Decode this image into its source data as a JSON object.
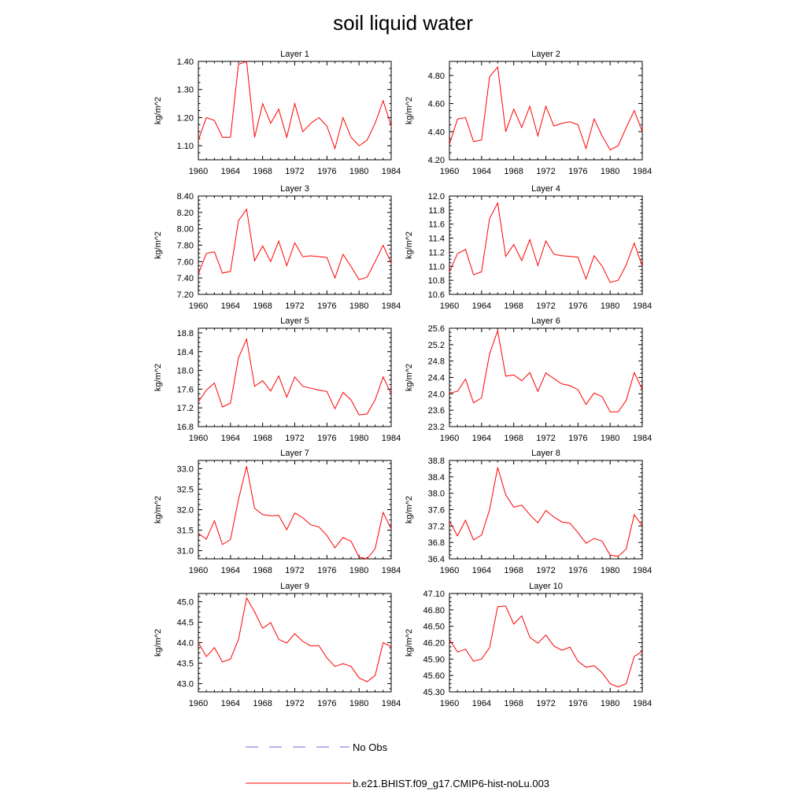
{
  "title": "soil liquid water",
  "ylabel": "kg/m^2",
  "x_tick_labels": [
    "1960",
    "1964",
    "1968",
    "1972",
    "1976",
    "1980",
    "1984"
  ],
  "legend": {
    "items": [
      {
        "label": "No Obs",
        "color": "#6b6bd6",
        "style": "dashed"
      },
      {
        "label": "b.e21.BHIST.f09_g17.CMIP6-hist-noLu.003",
        "color": "#ff0000",
        "style": "solid"
      }
    ]
  },
  "chart_data": [
    {
      "type": "line",
      "title": "Layer 1",
      "ylabel": "kg/m^2",
      "xlim": [
        1960,
        1984
      ],
      "ylim": [
        1.05,
        1.4
      ],
      "yticks": [
        1.1,
        1.2,
        1.3,
        1.4
      ],
      "ytick_labels": [
        "1.10",
        "1.20",
        "1.30",
        "1.40"
      ],
      "x": [
        1960,
        1961,
        1962,
        1963,
        1964,
        1965,
        1966,
        1967,
        1968,
        1969,
        1970,
        1971,
        1972,
        1973,
        1974,
        1975,
        1976,
        1977,
        1978,
        1979,
        1980,
        1981,
        1982,
        1983,
        1984
      ],
      "series": [
        {
          "name": "b.e21.BHIST.f09_g17.CMIP6-hist-noLu.003",
          "color": "#ff0000",
          "values": [
            1.12,
            1.2,
            1.19,
            1.13,
            1.13,
            1.39,
            1.4,
            1.13,
            1.25,
            1.18,
            1.23,
            1.13,
            1.25,
            1.15,
            1.18,
            1.2,
            1.17,
            1.09,
            1.2,
            1.13,
            1.1,
            1.12,
            1.18,
            1.26,
            1.17
          ]
        }
      ]
    },
    {
      "type": "line",
      "title": "Layer 2",
      "ylabel": "kg/m^2",
      "xlim": [
        1960,
        1984
      ],
      "ylim": [
        4.2,
        4.9
      ],
      "yticks": [
        4.2,
        4.4,
        4.6,
        4.8
      ],
      "ytick_labels": [
        "4.20",
        "4.40",
        "4.60",
        "4.80"
      ],
      "x": [
        1960,
        1961,
        1962,
        1963,
        1964,
        1965,
        1966,
        1967,
        1968,
        1969,
        1970,
        1971,
        1972,
        1973,
        1974,
        1975,
        1976,
        1977,
        1978,
        1979,
        1980,
        1981,
        1982,
        1983,
        1984
      ],
      "series": [
        {
          "name": "b.e21.BHIST.f09_g17.CMIP6-hist-noLu.003",
          "color": "#ff0000",
          "values": [
            4.31,
            4.49,
            4.5,
            4.33,
            4.34,
            4.79,
            4.86,
            4.4,
            4.56,
            4.43,
            4.58,
            4.37,
            4.58,
            4.44,
            4.46,
            4.47,
            4.45,
            4.28,
            4.49,
            4.37,
            4.27,
            4.3,
            4.43,
            4.55,
            4.4
          ]
        }
      ]
    },
    {
      "type": "line",
      "title": "Layer 3",
      "ylabel": "kg/m^2",
      "xlim": [
        1960,
        1984
      ],
      "ylim": [
        7.2,
        8.4
      ],
      "yticks": [
        7.2,
        7.4,
        7.6,
        7.8,
        8.0,
        8.2,
        8.4
      ],
      "ytick_labels": [
        "7.20",
        "7.40",
        "7.60",
        "7.80",
        "8.00",
        "8.20",
        "8.40"
      ],
      "x": [
        1960,
        1961,
        1962,
        1963,
        1964,
        1965,
        1966,
        1967,
        1968,
        1969,
        1970,
        1971,
        1972,
        1973,
        1974,
        1975,
        1976,
        1977,
        1978,
        1979,
        1980,
        1981,
        1982,
        1983,
        1984
      ],
      "series": [
        {
          "name": "b.e21.BHIST.f09_g17.CMIP6-hist-noLu.003",
          "color": "#ff0000",
          "values": [
            7.45,
            7.7,
            7.72,
            7.46,
            7.48,
            8.1,
            8.24,
            7.61,
            7.79,
            7.6,
            7.85,
            7.55,
            7.83,
            7.66,
            7.67,
            7.66,
            7.65,
            7.4,
            7.69,
            7.54,
            7.38,
            7.41,
            7.6,
            7.8,
            7.58
          ]
        }
      ]
    },
    {
      "type": "line",
      "title": "Layer 4",
      "ylabel": "kg/m^2",
      "xlim": [
        1960,
        1984
      ],
      "ylim": [
        10.6,
        12.0
      ],
      "yticks": [
        10.6,
        10.8,
        11.0,
        11.2,
        11.4,
        11.6,
        11.8,
        12.0
      ],
      "ytick_labels": [
        "10.6",
        "10.8",
        "11.0",
        "11.2",
        "11.4",
        "11.6",
        "11.8",
        "12.0"
      ],
      "x": [
        1960,
        1961,
        1962,
        1963,
        1964,
        1965,
        1966,
        1967,
        1968,
        1969,
        1970,
        1971,
        1972,
        1973,
        1974,
        1975,
        1976,
        1977,
        1978,
        1979,
        1980,
        1981,
        1982,
        1983,
        1984
      ],
      "series": [
        {
          "name": "b.e21.BHIST.f09_g17.CMIP6-hist-noLu.003",
          "color": "#ff0000",
          "values": [
            10.92,
            11.18,
            11.24,
            10.88,
            10.92,
            11.68,
            11.9,
            11.14,
            11.31,
            11.08,
            11.38,
            11.01,
            11.36,
            11.17,
            11.15,
            11.14,
            11.13,
            10.82,
            11.15,
            11.0,
            10.77,
            10.8,
            11.02,
            11.33,
            11.0
          ]
        }
      ]
    },
    {
      "type": "line",
      "title": "Layer 5",
      "ylabel": "kg/m^2",
      "xlim": [
        1960,
        1984
      ],
      "ylim": [
        16.8,
        18.9
      ],
      "yticks": [
        16.8,
        17.2,
        17.6,
        18.0,
        18.4,
        18.8
      ],
      "ytick_labels": [
        "16.8",
        "17.2",
        "17.6",
        "18.0",
        "18.4",
        "18.8"
      ],
      "x": [
        1960,
        1961,
        1962,
        1963,
        1964,
        1965,
        1966,
        1967,
        1968,
        1969,
        1970,
        1971,
        1972,
        1973,
        1974,
        1975,
        1976,
        1977,
        1978,
        1979,
        1980,
        1981,
        1982,
        1983,
        1984
      ],
      "series": [
        {
          "name": "b.e21.BHIST.f09_g17.CMIP6-hist-noLu.003",
          "color": "#ff0000",
          "values": [
            17.33,
            17.58,
            17.73,
            17.22,
            17.3,
            18.27,
            18.67,
            17.66,
            17.78,
            17.56,
            17.88,
            17.43,
            17.86,
            17.66,
            17.62,
            17.58,
            17.55,
            17.18,
            17.53,
            17.37,
            17.05,
            17.07,
            17.37,
            17.86,
            17.5
          ]
        }
      ]
    },
    {
      "type": "line",
      "title": "Layer 6",
      "ylabel": "kg/m^2",
      "xlim": [
        1960,
        1984
      ],
      "ylim": [
        23.2,
        25.6
      ],
      "yticks": [
        23.2,
        23.6,
        24.0,
        24.4,
        24.8,
        25.2,
        25.6
      ],
      "ytick_labels": [
        "23.2",
        "23.6",
        "24.0",
        "24.4",
        "24.8",
        "25.2",
        "25.6"
      ],
      "x": [
        1960,
        1961,
        1962,
        1963,
        1964,
        1965,
        1966,
        1967,
        1968,
        1969,
        1970,
        1971,
        1972,
        1973,
        1974,
        1975,
        1976,
        1977,
        1978,
        1979,
        1980,
        1981,
        1982,
        1983,
        1984
      ],
      "series": [
        {
          "name": "b.e21.BHIST.f09_g17.CMIP6-hist-noLu.003",
          "color": "#ff0000",
          "values": [
            24.02,
            24.06,
            24.36,
            23.78,
            23.9,
            24.98,
            25.54,
            24.43,
            24.46,
            24.32,
            24.52,
            24.06,
            24.51,
            24.37,
            24.24,
            24.2,
            24.1,
            23.74,
            24.02,
            23.93,
            23.56,
            23.56,
            23.84,
            24.52,
            24.1
          ]
        }
      ]
    },
    {
      "type": "line",
      "title": "Layer 7",
      "ylabel": "kg/m^2",
      "xlim": [
        1960,
        1984
      ],
      "ylim": [
        30.8,
        33.2
      ],
      "yticks": [
        31.0,
        31.5,
        32.0,
        32.5,
        33.0
      ],
      "ytick_labels": [
        "31.0",
        "31.5",
        "32.0",
        "32.5",
        "33.0"
      ],
      "x": [
        1960,
        1961,
        1962,
        1963,
        1964,
        1965,
        1966,
        1967,
        1968,
        1969,
        1970,
        1971,
        1972,
        1973,
        1974,
        1975,
        1976,
        1977,
        1978,
        1979,
        1980,
        1981,
        1982,
        1983,
        1984
      ],
      "series": [
        {
          "name": "b.e21.BHIST.f09_g17.CMIP6-hist-noLu.003",
          "color": "#ff0000",
          "values": [
            31.42,
            31.28,
            31.73,
            31.15,
            31.27,
            32.25,
            33.06,
            32.03,
            31.88,
            31.85,
            31.86,
            31.51,
            31.92,
            31.8,
            31.63,
            31.58,
            31.37,
            31.07,
            31.32,
            31.23,
            30.84,
            30.8,
            31.05,
            31.93,
            31.53
          ]
        }
      ]
    },
    {
      "type": "line",
      "title": "Layer 8",
      "ylabel": "kg/m^2",
      "xlim": [
        1960,
        1984
      ],
      "ylim": [
        36.4,
        38.8
      ],
      "yticks": [
        36.4,
        36.8,
        37.2,
        37.6,
        38.0,
        38.4,
        38.8
      ],
      "ytick_labels": [
        "36.4",
        "36.8",
        "37.2",
        "37.6",
        "38.0",
        "38.4",
        "38.8"
      ],
      "x": [
        1960,
        1961,
        1962,
        1963,
        1964,
        1965,
        1966,
        1967,
        1968,
        1969,
        1970,
        1971,
        1972,
        1973,
        1974,
        1975,
        1976,
        1977,
        1978,
        1979,
        1980,
        1981,
        1982,
        1983,
        1984
      ],
      "series": [
        {
          "name": "b.e21.BHIST.f09_g17.CMIP6-hist-noLu.003",
          "color": "#ff0000",
          "values": [
            37.32,
            36.96,
            37.34,
            36.86,
            36.98,
            37.6,
            38.63,
            37.96,
            37.66,
            37.71,
            37.48,
            37.28,
            37.58,
            37.42,
            37.3,
            37.27,
            37.04,
            36.78,
            36.9,
            36.83,
            36.49,
            36.46,
            36.64,
            37.48,
            37.2
          ]
        }
      ]
    },
    {
      "type": "line",
      "title": "Layer 9",
      "ylabel": "kg/m^2",
      "xlim": [
        1960,
        1984
      ],
      "ylim": [
        42.8,
        45.2
      ],
      "yticks": [
        43.0,
        43.5,
        44.0,
        44.5,
        45.0
      ],
      "ytick_labels": [
        "43.0",
        "43.5",
        "44.0",
        "44.5",
        "45.0"
      ],
      "x": [
        1960,
        1961,
        1962,
        1963,
        1964,
        1965,
        1966,
        1967,
        1968,
        1969,
        1970,
        1971,
        1972,
        1973,
        1974,
        1975,
        1976,
        1977,
        1978,
        1979,
        1980,
        1981,
        1982,
        1983,
        1984
      ],
      "series": [
        {
          "name": "b.e21.BHIST.f09_g17.CMIP6-hist-noLu.003",
          "color": "#ff0000",
          "values": [
            44.0,
            43.66,
            43.88,
            43.53,
            43.6,
            44.08,
            45.09,
            44.75,
            44.35,
            44.49,
            44.08,
            43.99,
            44.22,
            44.03,
            43.92,
            43.93,
            43.63,
            43.42,
            43.49,
            43.42,
            43.14,
            43.05,
            43.2,
            44.0,
            43.9
          ]
        }
      ]
    },
    {
      "type": "line",
      "title": "Layer 10",
      "ylabel": "kg/m^2",
      "xlim": [
        1960,
        1984
      ],
      "ylim": [
        45.3,
        47.1
      ],
      "yticks": [
        45.3,
        45.6,
        45.9,
        46.2,
        46.5,
        46.8,
        47.1
      ],
      "ytick_labels": [
        "45.30",
        "45.60",
        "45.90",
        "46.20",
        "46.50",
        "46.80",
        "47.10"
      ],
      "x": [
        1960,
        1961,
        1962,
        1963,
        1964,
        1965,
        1966,
        1967,
        1968,
        1969,
        1970,
        1971,
        1972,
        1973,
        1974,
        1975,
        1976,
        1977,
        1978,
        1979,
        1980,
        1981,
        1982,
        1983,
        1984
      ],
      "series": [
        {
          "name": "b.e21.BHIST.f09_g17.CMIP6-hist-noLu.003",
          "color": "#ff0000",
          "values": [
            46.26,
            46.03,
            46.08,
            45.86,
            45.9,
            46.11,
            46.86,
            46.87,
            46.54,
            46.69,
            46.3,
            46.19,
            46.34,
            46.14,
            46.06,
            46.12,
            45.86,
            45.75,
            45.78,
            45.65,
            45.45,
            45.39,
            45.45,
            45.95,
            46.04
          ]
        }
      ]
    }
  ]
}
